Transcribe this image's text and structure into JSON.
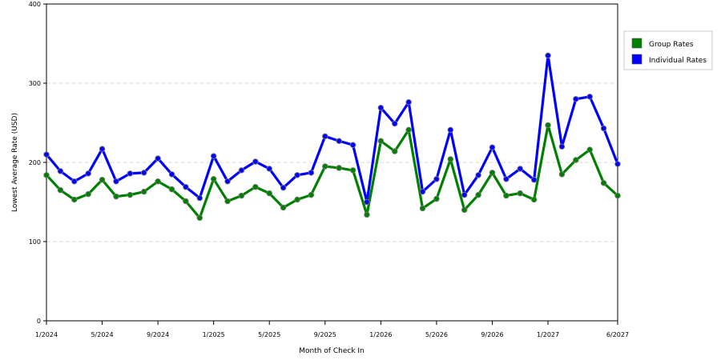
{
  "chart_data": {
    "type": "line",
    "xlabel": "Month of Check In",
    "ylabel": "Lowest Average Rate (USD)",
    "ylim": [
      0,
      400
    ],
    "yticks": [
      "0",
      "100",
      "200",
      "300",
      "400"
    ],
    "x_tick_labels": [
      "1/2024",
      "5/2024",
      "9/2024",
      "1/2025",
      "5/2025",
      "9/2025",
      "1/2026",
      "5/2026",
      "9/2026",
      "1/2027",
      "6/2027"
    ],
    "grid": "horizontal dashed",
    "legend_position": "right",
    "months": [
      "1/2024",
      "2/2024",
      "3/2024",
      "4/2024",
      "5/2024",
      "6/2024",
      "7/2024",
      "8/2024",
      "9/2024",
      "10/2024",
      "11/2024",
      "12/2024",
      "1/2025",
      "2/2025",
      "3/2025",
      "4/2025",
      "5/2025",
      "6/2025",
      "7/2025",
      "8/2025",
      "9/2025",
      "10/2025",
      "11/2025",
      "12/2025",
      "1/2026",
      "2/2026",
      "3/2026",
      "4/2026",
      "5/2026",
      "6/2026",
      "7/2026",
      "8/2026",
      "9/2026",
      "10/2026",
      "11/2026",
      "12/2026",
      "1/2027",
      "2/2027",
      "3/2027",
      "4/2027",
      "5/2027",
      "6/2027"
    ],
    "series": [
      {
        "name": "Group Rates",
        "color": "#008000",
        "values": [
          184,
          165,
          153,
          160,
          178,
          157,
          159,
          163,
          176,
          166,
          151,
          130,
          179,
          151,
          158,
          169,
          161,
          143,
          153,
          159,
          195,
          193,
          190,
          134,
          227,
          214,
          241,
          142,
          154,
          204,
          140,
          159,
          187,
          158,
          161,
          153,
          247,
          185,
          203,
          216,
          174,
          158
        ]
      },
      {
        "name": "Individual Rates",
        "color": "#0000ff",
        "values": [
          210,
          189,
          176,
          186,
          217,
          176,
          186,
          187,
          205,
          185,
          169,
          155,
          208,
          176,
          190,
          201,
          192,
          168,
          184,
          187,
          233,
          227,
          222,
          150,
          269,
          249,
          276,
          163,
          179,
          241,
          159,
          184,
          219,
          179,
          192,
          178,
          335,
          220,
          280,
          283,
          243,
          198
        ]
      }
    ]
  }
}
